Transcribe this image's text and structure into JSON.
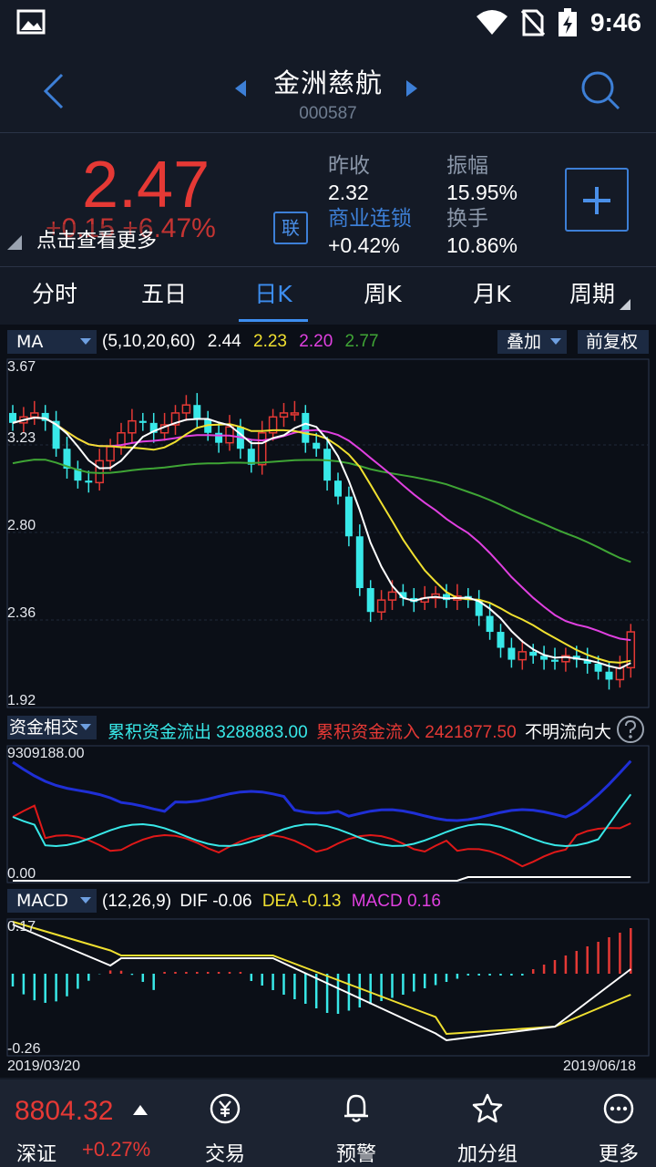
{
  "status_bar": {
    "time": "9:46"
  },
  "header": {
    "title": "金洲慈航",
    "code": "000587"
  },
  "quote": {
    "price": "2.47",
    "change": "+0.15 +6.47%",
    "tip": "点击查看更多",
    "link_badge": "联",
    "prev_close_label": "昨收",
    "prev_close_value": "2.32",
    "amplitude_label": "振幅",
    "amplitude_value": "15.95%",
    "sector_label": "商业连锁",
    "sector_value": "+0.42%",
    "turnover_label": "换手",
    "turnover_value": "10.86%"
  },
  "tabs": [
    "分时",
    "五日",
    "日K",
    "周K",
    "月K",
    "周期"
  ],
  "active_tab": "日K",
  "ma": {
    "button": "MA",
    "params": "(5,10,20,60)",
    "v5": "2.44",
    "v10": "2.23",
    "v20": "2.20",
    "v60": "2.77",
    "overlay_button": "叠加",
    "adjust_button": "前复权",
    "colors": {
      "ma5": "#ffffff",
      "ma10": "#f0e030",
      "ma20": "#e040e0",
      "ma60": "#3fa535",
      "up": "#e53935",
      "down": "#38e8e8"
    }
  },
  "price_axis": {
    "top": "3.67",
    "l1": "3.23",
    "l2": "2.80",
    "l3": "2.36",
    "bottom": "1.92"
  },
  "fund": {
    "button": "资金相交",
    "outflow_label": "累积资金流出",
    "outflow_value": "3288883.00",
    "inflow_label": "累积资金流入",
    "inflow_value": "2421877.50",
    "unknown_label": "不明流向大",
    "axis_top": "9309188.00",
    "axis_bottom": "0.00"
  },
  "macd": {
    "button": "MACD",
    "params": "(12,26,9)",
    "dif_label": "DIF",
    "dif_value": "-0.06",
    "dea_label": "DEA",
    "dea_value": "-0.13",
    "macd_label": "MACD",
    "macd_value": "0.16",
    "axis_top": "0.17",
    "axis_bottom": "-0.26",
    "date_start": "2019/03/20",
    "date_end": "2019/06/18"
  },
  "bottom": {
    "index_value": "8804.32",
    "index_name": "深证",
    "index_change": "+0.27%",
    "nav": [
      {
        "label": "交易",
        "icon": "trade-icon"
      },
      {
        "label": "预警",
        "icon": "bell-icon"
      },
      {
        "label": "加分组",
        "icon": "star-icon"
      },
      {
        "label": "更多",
        "icon": "more-icon"
      }
    ]
  }
}
